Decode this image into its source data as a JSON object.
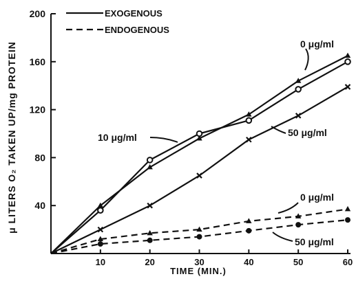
{
  "chart_data": {
    "type": "line",
    "title": "",
    "xlabel": "TIME (MIN.)",
    "ylabel": "μ LITERS O₂ TAKEN UP/mg PROTEIN",
    "xlim": [
      0,
      60
    ],
    "ylim": [
      0,
      200
    ],
    "x_ticks": [
      10,
      20,
      30,
      40,
      50,
      60
    ],
    "y_ticks": [
      40,
      80,
      120,
      160,
      200
    ],
    "grid": false,
    "legend_position": "top-left",
    "legend": [
      {
        "label": "EXOGENOUS",
        "style": "solid"
      },
      {
        "label": "ENDOGENOUS",
        "style": "dashed"
      }
    ],
    "series": [
      {
        "name": "0 μg/ml",
        "group": "EXOGENOUS",
        "marker": "triangle",
        "x": [
          0,
          10,
          20,
          30,
          40,
          50,
          60
        ],
        "y": [
          0,
          40,
          72,
          96,
          116,
          144,
          165
        ]
      },
      {
        "name": "10 μg/ml",
        "group": "EXOGENOUS",
        "marker": "circle-open",
        "x": [
          0,
          10,
          20,
          30,
          40,
          50,
          60
        ],
        "y": [
          0,
          36,
          78,
          100,
          111,
          137,
          160
        ]
      },
      {
        "name": "50 μg/ml",
        "group": "EXOGENOUS",
        "marker": "cross",
        "x": [
          0,
          10,
          20,
          30,
          40,
          50,
          60
        ],
        "y": [
          0,
          20,
          40,
          65,
          95,
          115,
          139
        ]
      },
      {
        "name": "0 μg/ml",
        "group": "ENDOGENOUS",
        "marker": "triangle",
        "x": [
          0,
          10,
          20,
          30,
          40,
          50,
          60
        ],
        "y": [
          0,
          12,
          17,
          20,
          27,
          31,
          37
        ]
      },
      {
        "name": "50 μg/ml",
        "group": "ENDOGENOUS",
        "marker": "circle-filled",
        "x": [
          0,
          10,
          20,
          30,
          40,
          50,
          60
        ],
        "y": [
          0,
          8,
          11,
          14,
          19,
          24,
          28
        ]
      }
    ],
    "annotations": [
      {
        "text": "0 μg/ml",
        "series_index": 0
      },
      {
        "text": "10 μg/ml",
        "series_index": 1
      },
      {
        "text": "50 μg/ml",
        "series_index": 2
      },
      {
        "text": "0 μg/ml",
        "series_index": 3
      },
      {
        "text": "50 μg/ml",
        "series_index": 4
      }
    ]
  }
}
